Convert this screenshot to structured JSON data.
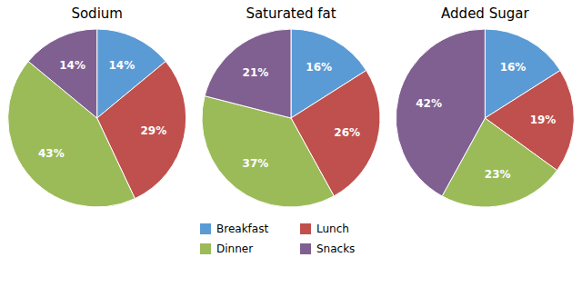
{
  "chart_data": [
    {
      "type": "pie",
      "title": "Sodium",
      "categories": [
        "Breakfast",
        "Lunch",
        "Dinner",
        "Snacks"
      ],
      "values": [
        14,
        29,
        43,
        14
      ],
      "value_labels": [
        "14%",
        "29%",
        "43%",
        "14%"
      ],
      "colors": [
        "#5B9BD5",
        "#C0504D",
        "#9BBB59",
        "#7F6091"
      ],
      "data_labels": true
    },
    {
      "type": "pie",
      "title": "Saturated fat",
      "categories": [
        "Breakfast",
        "Lunch",
        "Dinner",
        "Snacks"
      ],
      "values": [
        16,
        26,
        37,
        21
      ],
      "value_labels": [
        "16%",
        "26%",
        "37%",
        "21%"
      ],
      "colors": [
        "#5B9BD5",
        "#C0504D",
        "#9BBB59",
        "#7F6091"
      ],
      "data_labels": true
    },
    {
      "type": "pie",
      "title": "Added Sugar",
      "categories": [
        "Breakfast",
        "Lunch",
        "Dinner",
        "Snacks"
      ],
      "values": [
        16,
        19,
        23,
        42
      ],
      "value_labels": [
        "16%",
        "19%",
        "23%",
        "42%"
      ],
      "colors": [
        "#5B9BD5",
        "#C0504D",
        "#9BBB59",
        "#7F6091"
      ],
      "data_labels": true
    }
  ]
}
